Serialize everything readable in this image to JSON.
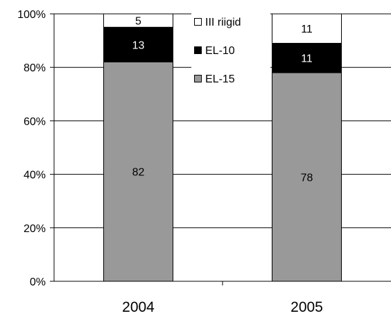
{
  "chart_data": {
    "type": "bar",
    "stacked": true,
    "categories": [
      "2004",
      "2005"
    ],
    "series": [
      {
        "name": "EL-15",
        "values": [
          82,
          78
        ],
        "color": "#999999",
        "label_color": "#000000"
      },
      {
        "name": "EL-10",
        "values": [
          13,
          11
        ],
        "color": "#000000",
        "label_color": "#ffffff"
      },
      {
        "name": "III riigid",
        "values": [
          5,
          11
        ],
        "color": "#ffffff",
        "label_color": "#000000"
      }
    ],
    "legend_order": [
      "III riigid",
      "EL-10",
      "EL-15"
    ],
    "y_ticks": [
      "0%",
      "20%",
      "40%",
      "60%",
      "80%",
      "100%"
    ],
    "ylim": [
      0,
      100
    ],
    "grid": true,
    "legend_position": "top-center"
  }
}
